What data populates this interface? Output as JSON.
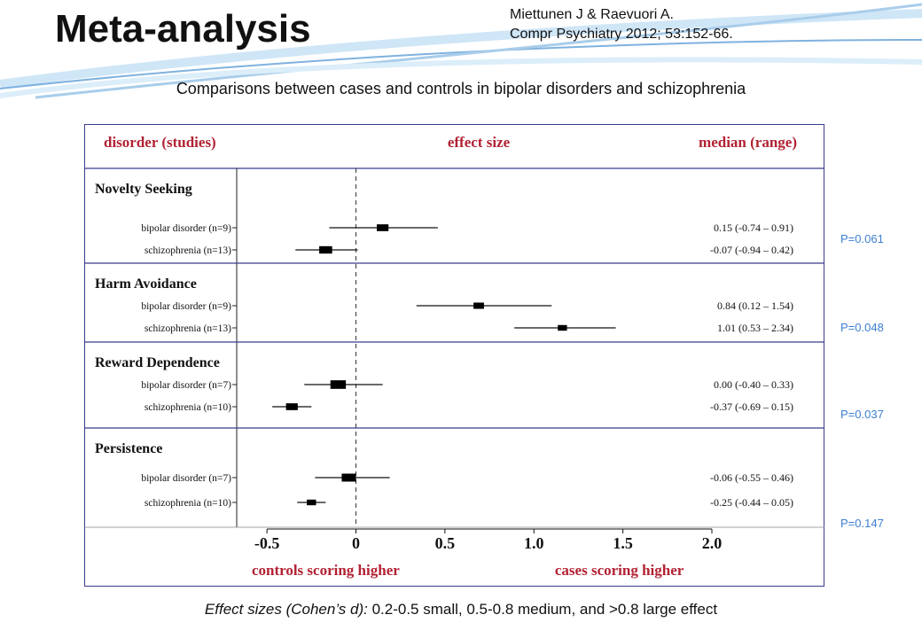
{
  "slide": {
    "title": "Meta-analysis",
    "citation_line1": "Miettunen J & Raevuori A.",
    "citation_line2": "Compr Psychiatry 2012; 53:152-66.",
    "subtitle": "Comparisons between cases and controls in bipolar disorders and schizophrenia",
    "footer_italic": "Effect sizes (Cohen’s d):",
    "footer_rest": " 0.2-0.5 small, 0.5-0.8 medium, and >0.8 large effect"
  },
  "colors": {
    "header_red": "#b22234",
    "frame_blue": "#3b3b8f",
    "pvalue_blue": "#3e7fd1",
    "swoosh_blue": "#7fb2df",
    "swoosh_light": "#cfe6f7"
  },
  "p_values": [
    "P=0.061",
    "P=0.048",
    "P=0.037",
    "P=0.147"
  ],
  "chart_data": {
    "type": "forest",
    "header": {
      "left": "disorder (studies)",
      "center": "effect size",
      "right": "median (range)"
    },
    "xlim": [
      -0.67,
      2.02
    ],
    "reference_line": 0,
    "x_ticks": [
      -0.5,
      0,
      0.5,
      1.0,
      1.5,
      2.0
    ],
    "x_tick_labels": [
      "-0.5",
      "0",
      "0.5",
      "1.0",
      "1.5",
      "2.0"
    ],
    "xlabel_left": "controls scoring higher",
    "xlabel_right": "cases scoring higher",
    "groups": [
      {
        "name": "Novelty Seeking",
        "rows": [
          {
            "label": "bipolar disorder (n=9)",
            "estimate": 0.15,
            "ci_low": -0.15,
            "ci_high": 0.46,
            "box_weight": 0.8,
            "text": "0.15 (-0.74 – 0.91)"
          },
          {
            "label": "schizophrenia (n=13)",
            "estimate": -0.17,
            "ci_low": -0.34,
            "ci_high": 0.01,
            "box_weight": 0.9,
            "text": "-0.07 (-0.94 – 0.42)"
          }
        ]
      },
      {
        "name": "Harm Avoidance",
        "rows": [
          {
            "label": "bipolar disorder (n=9)",
            "estimate": 0.69,
            "ci_low": 0.34,
            "ci_high": 1.1,
            "box_weight": 0.7,
            "text": "0.84 (0.12 – 1.54)"
          },
          {
            "label": "schizophrenia (n=13)",
            "estimate": 1.16,
            "ci_low": 0.89,
            "ci_high": 1.46,
            "box_weight": 0.6,
            "text": "1.01 (0.53 – 2.34)"
          }
        ]
      },
      {
        "name": "Reward Dependence",
        "rows": [
          {
            "label": "bipolar disorder (n=7)",
            "estimate": -0.1,
            "ci_low": -0.29,
            "ci_high": 0.15,
            "box_weight": 1.1,
            "text": "0.00 (-0.40 – 0.33)"
          },
          {
            "label": "schizophrenia (n=10)",
            "estimate": -0.36,
            "ci_low": -0.47,
            "ci_high": -0.25,
            "box_weight": 0.8,
            "text": "-0.37 (-0.69 – 0.15)"
          }
        ]
      },
      {
        "name": "Persistence",
        "rows": [
          {
            "label": "bipolar disorder (n=7)",
            "estimate": -0.04,
            "ci_low": -0.23,
            "ci_high": 0.19,
            "box_weight": 1.0,
            "text": "-0.06 (-0.55 – 0.46)"
          },
          {
            "label": "schizophrenia (n=10)",
            "estimate": -0.25,
            "ci_low": -0.33,
            "ci_high": -0.17,
            "box_weight": 0.6,
            "text": "-0.25 (-0.44 – 0.05)"
          }
        ]
      }
    ]
  }
}
